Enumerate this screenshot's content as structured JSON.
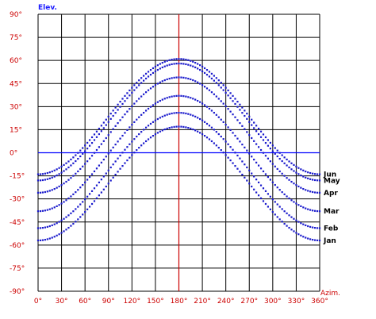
{
  "chart_data": {
    "type": "scatter",
    "xlabel": "Azim.",
    "ylabel": "Elev.",
    "xlim": [
      0,
      360
    ],
    "ylim": [
      -90,
      90
    ],
    "x_ticks": [
      "0°",
      "30°",
      "60°",
      "90°",
      "120°",
      "150°",
      "180°",
      "210°",
      "240°",
      "270°",
      "300°",
      "330°",
      "360°"
    ],
    "y_ticks": [
      "90°",
      "75°",
      "60°",
      "45°",
      "30°",
      "15°",
      "0°",
      "-15°",
      "-30°",
      "-45°",
      "-60°",
      "-75°",
      "-90°"
    ],
    "grid": true,
    "reference_lines": {
      "elevation_0": "#0000ff",
      "azimuth_180": "#cc0000"
    },
    "point_color": "#1a1acc",
    "series": [
      {
        "name": "Jun",
        "peak": 61,
        "end": -14
      },
      {
        "name": "May",
        "peak": 58,
        "end": -18
      },
      {
        "name": "Apr",
        "peak": 49,
        "end": -26
      },
      {
        "name": "Mar",
        "peak": 37,
        "end": -38
      },
      {
        "name": "Feb",
        "peak": 26,
        "end": -49
      },
      {
        "name": "Jan",
        "peak": 17,
        "end": -57
      }
    ]
  }
}
